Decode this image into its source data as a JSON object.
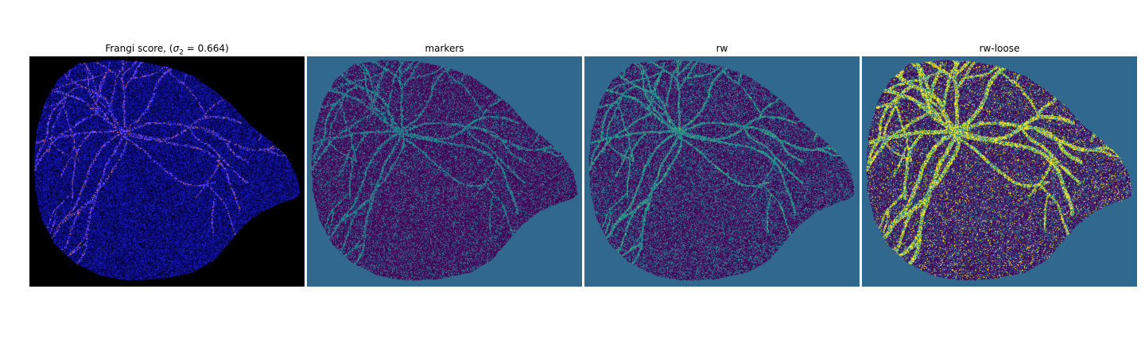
{
  "figure": {
    "panels": [
      {
        "title_text": "Frangi score, (",
        "title_sigma": "σ",
        "title_sub": "2",
        "title_rest": " = 0.664)",
        "colormap": "gnuplot2",
        "background": "#000000"
      },
      {
        "title": "markers",
        "colormap": "viridis",
        "background": "#31688e"
      },
      {
        "title": "rw",
        "colormap": "viridis",
        "background": "#31688e"
      },
      {
        "title": "rw-loose",
        "colormap": "viridis",
        "background": "#31688e"
      }
    ]
  }
}
